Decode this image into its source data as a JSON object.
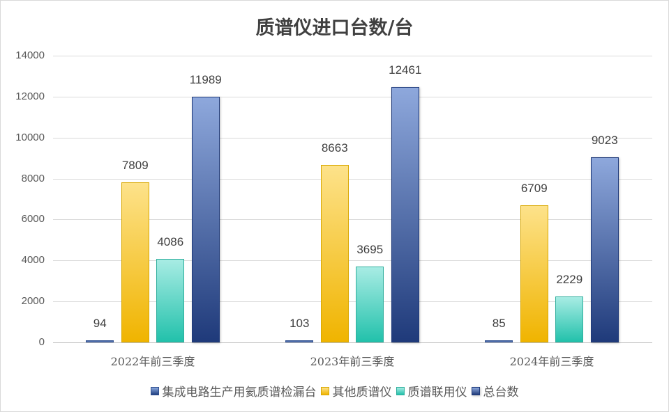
{
  "chart_data": {
    "type": "bar",
    "title": "质谱仪进口台数/台",
    "xlabel": "",
    "ylabel": "",
    "ylim": [
      0,
      14000
    ],
    "yticks": [
      0,
      2000,
      4000,
      6000,
      8000,
      10000,
      12000,
      14000
    ],
    "grid": true,
    "legend_position": "bottom",
    "categories": [
      "2022年前三季度",
      "2023年前三季度",
      "2024年前三季度"
    ],
    "series": [
      {
        "name": "集成电路生产用氦质谱检漏台",
        "color": "#4f72bd",
        "values": [
          94,
          103,
          85
        ]
      },
      {
        "name": "其他质谱仪",
        "color": "#f0b400",
        "values": [
          7809,
          8663,
          6709
        ]
      },
      {
        "name": "质谱联用仪",
        "color": "#2fc2ac",
        "values": [
          4086,
          3695,
          2229
        ]
      },
      {
        "name": "总台数",
        "color": "#1f3a7a",
        "values": [
          11989,
          12461,
          9023
        ]
      }
    ]
  },
  "ui": {
    "yticks_labels": [
      "0",
      "2000",
      "4000",
      "6000",
      "8000",
      "10000",
      "12000",
      "14000"
    ]
  }
}
